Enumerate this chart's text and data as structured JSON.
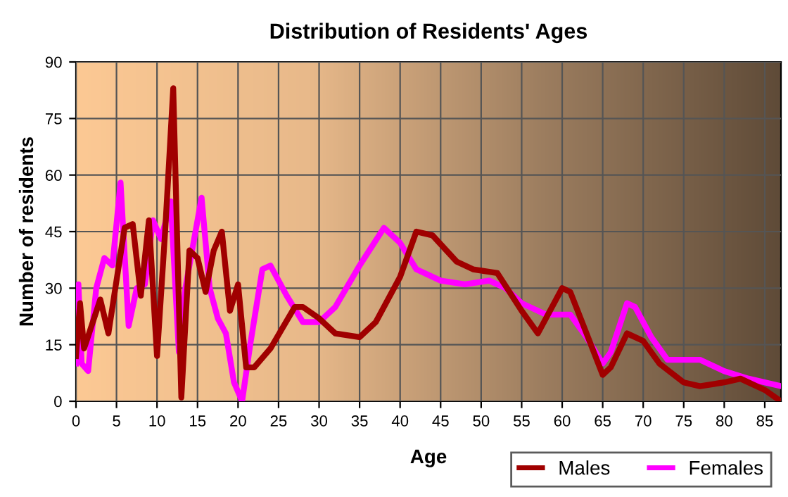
{
  "chart_data": {
    "type": "line",
    "title": "Distribution of Residents' Ages",
    "xlabel": "Age",
    "ylabel": "Number of residents",
    "xlim": [
      0,
      87
    ],
    "xticks": [
      0,
      5,
      10,
      15,
      20,
      25,
      30,
      35,
      40,
      45,
      50,
      55,
      60,
      65,
      70,
      75,
      80,
      85
    ],
    "ylim": [
      0,
      90
    ],
    "yticks": [
      0,
      15,
      30,
      45,
      60,
      75,
      90
    ],
    "grid": true,
    "legend": "bottom right",
    "series": [
      {
        "name": "Males",
        "color": "#a00000",
        "x": [
          0,
          0.5,
          1,
          3,
          4,
          6,
          7,
          8,
          9,
          10,
          11,
          12,
          13,
          14,
          15,
          16,
          17,
          18,
          19,
          20,
          21,
          22,
          24,
          27,
          28,
          30,
          32,
          35,
          37,
          40,
          42,
          44,
          47,
          49,
          52,
          55,
          57,
          60,
          61,
          63,
          65,
          66,
          68,
          70,
          72,
          75,
          77,
          80,
          82,
          85,
          87
        ],
        "values": [
          12,
          26,
          14,
          27,
          18,
          46,
          47,
          28,
          48,
          12,
          45,
          83,
          1,
          40,
          38,
          29,
          40,
          45,
          24,
          31,
          9,
          9,
          14,
          25,
          25,
          22,
          18,
          17,
          21,
          33,
          45,
          44,
          37,
          35,
          34,
          24,
          18,
          30,
          29,
          18,
          7,
          9,
          18,
          16,
          10,
          5,
          4,
          5,
          6,
          3,
          0
        ]
      },
      {
        "name": "Females",
        "color": "#ff00ff",
        "x": [
          0,
          0.3,
          0.7,
          1.5,
          2.5,
          3.5,
          4.5,
          5.5,
          6.5,
          7.5,
          8.5,
          9.5,
          10.5,
          11.7,
          12.7,
          13.5,
          15.5,
          16.5,
          17.5,
          18.5,
          19.5,
          20.5,
          21.5,
          23,
          24,
          26,
          28,
          30,
          32,
          35,
          38,
          40,
          42,
          45,
          48,
          51,
          53,
          55,
          58,
          61,
          63,
          65,
          66,
          68,
          69,
          71,
          73,
          77,
          80,
          83,
          87
        ],
        "values": [
          10,
          31,
          10,
          8,
          30,
          38,
          36,
          58,
          20,
          30,
          31,
          48,
          43,
          53,
          13,
          30,
          54,
          30,
          22,
          18,
          5,
          0,
          15,
          35,
          36,
          28,
          21,
          21,
          25,
          36,
          46,
          42,
          35,
          32,
          31,
          32,
          30,
          26,
          23,
          23,
          17,
          10,
          13,
          26,
          25,
          17,
          11,
          11,
          8,
          6,
          4
        ]
      }
    ]
  }
}
